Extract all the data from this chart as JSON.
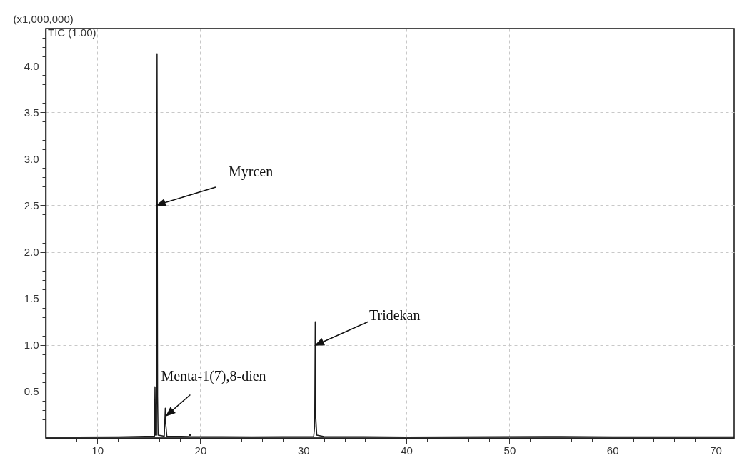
{
  "chart_data": {
    "type": "line",
    "ylabel": "(x1,000,000)",
    "x": [
      5,
      8,
      12,
      15.55,
      15.6,
      15.65,
      15.75,
      15.8,
      15.85,
      15.9,
      16.5,
      16.6,
      16.65,
      16.75,
      18.9,
      19,
      19.1,
      25,
      31.0,
      31.1,
      31.15,
      31.2,
      31.3,
      32,
      40,
      55,
      60,
      71.8
    ],
    "series": [
      {
        "color": "#1a1a1a",
        "values": [
          0.01,
          0.01,
          0.012,
          0.02,
          0.55,
          0.03,
          0.03,
          4.13,
          0.45,
          0.03,
          0.02,
          0.32,
          0.15,
          0.02,
          0.015,
          0.04,
          0.015,
          0.012,
          0.015,
          0.13,
          1.25,
          0.23,
          0.03,
          0.015,
          0.01,
          0.015,
          0.012,
          0.012
        ]
      }
    ],
    "xlim": [
      5,
      71.8
    ],
    "xticks": [
      {
        "value": 6,
        "label": null
      },
      {
        "value": 8,
        "label": null
      },
      10,
      {
        "value": 12,
        "label": null
      },
      {
        "value": 14,
        "label": null
      },
      {
        "value": 16,
        "label": null
      },
      {
        "value": 18,
        "label": null
      },
      20,
      {
        "value": 22,
        "label": null
      },
      {
        "value": 24,
        "label": null
      },
      {
        "value": 26,
        "label": null
      },
      {
        "value": 28,
        "label": null
      },
      30,
      {
        "value": 32,
        "label": null
      },
      {
        "value": 34,
        "label": null
      },
      {
        "value": 36,
        "label": null
      },
      {
        "value": 38,
        "label": null
      },
      40,
      {
        "value": 42,
        "label": null
      },
      {
        "value": 44,
        "label": null
      },
      {
        "value": 46,
        "label": null
      },
      {
        "value": 48,
        "label": null
      },
      50,
      {
        "value": 52,
        "label": null
      },
      {
        "value": 54,
        "label": null
      },
      {
        "value": 56,
        "label": null
      },
      {
        "value": 58,
        "label": null
      },
      60,
      {
        "value": 62,
        "label": null
      },
      {
        "value": 64,
        "label": null
      },
      {
        "value": 66,
        "label": null
      },
      {
        "value": 68,
        "label": null
      },
      70
    ],
    "ylim": [
      0,
      4.4
    ],
    "yticks": [
      {
        "value": 0.1,
        "label": null
      },
      {
        "value": 0.2,
        "label": null
      },
      {
        "value": 0.3,
        "label": null
      },
      {
        "value": 0.4,
        "label": null
      },
      {
        "value": 0.5,
        "label": "0.5"
      },
      {
        "value": 0.6,
        "label": null
      },
      {
        "value": 0.7,
        "label": null
      },
      {
        "value": 0.8,
        "label": null
      },
      {
        "value": 0.9,
        "label": null
      },
      {
        "value": 1,
        "label": "1.0"
      },
      {
        "value": 1.1,
        "label": null
      },
      {
        "value": 1.2,
        "label": null
      },
      {
        "value": 1.3,
        "label": null
      },
      {
        "value": 1.4,
        "label": null
      },
      {
        "value": 1.5,
        "label": "1.5"
      },
      {
        "value": 1.6,
        "label": null
      },
      {
        "value": 1.7,
        "label": null
      },
      {
        "value": 1.8,
        "label": null
      },
      {
        "value": 1.9,
        "label": null
      },
      {
        "value": 2,
        "label": "2.0"
      },
      {
        "value": 2.1,
        "label": null
      },
      {
        "value": 2.2,
        "label": null
      },
      {
        "value": 2.3,
        "label": null
      },
      {
        "value": 2.4,
        "label": null
      },
      {
        "value": 2.5,
        "label": "2.5"
      },
      {
        "value": 2.6,
        "label": null
      },
      {
        "value": 2.7,
        "label": null
      },
      {
        "value": 2.8,
        "label": null
      },
      {
        "value": 2.9,
        "label": null
      },
      {
        "value": 3,
        "label": "3.0"
      },
      {
        "value": 3.1,
        "label": null
      },
      {
        "value": 3.2,
        "label": null
      },
      {
        "value": 3.3,
        "label": null
      },
      {
        "value": 3.4,
        "label": null
      },
      {
        "value": 3.5,
        "label": "3.5"
      },
      {
        "value": 3.6,
        "label": null
      },
      {
        "value": 3.7,
        "label": null
      },
      {
        "value": 3.8,
        "label": null
      },
      {
        "value": 3.9,
        "label": null
      },
      {
        "value": 4,
        "label": "4.0"
      },
      {
        "value": 4.1,
        "label": null
      },
      {
        "value": 4.2,
        "label": null
      },
      {
        "value": 4.3,
        "label": null
      }
    ],
    "grid": true,
    "marker": "none",
    "annotations": [
      "Myrcen",
      {
        "text": "Menta-1(7),8-dien",
        "x": 16.6,
        "y": 0.25
      },
      "Tridekan",
      "TIC (1.00)"
    ]
  }
}
